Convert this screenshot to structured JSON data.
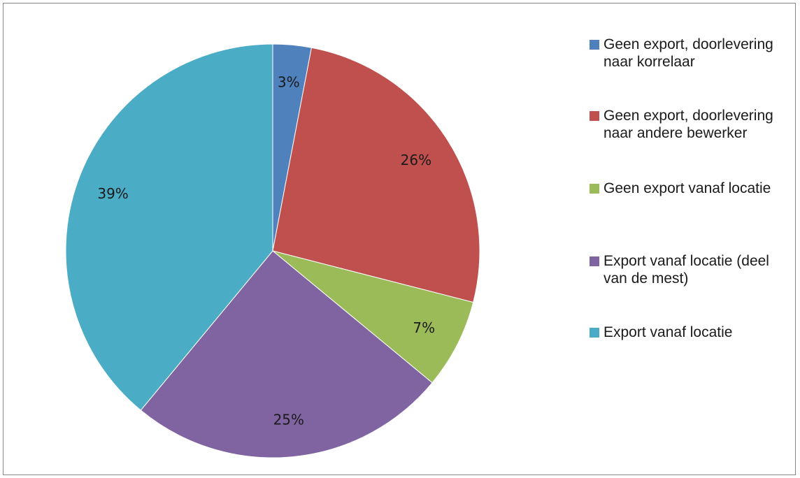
{
  "chart_data": {
    "type": "pie",
    "title": "",
    "legend_position": "right",
    "slices": [
      {
        "name": "Geen export, doorlevering naar korrelaar",
        "value": 3,
        "label": "3%",
        "color": "#4f81bd"
      },
      {
        "name": "Geen export, doorlevering naar andere bewerker",
        "value": 26,
        "label": "26%",
        "color": "#c0504d"
      },
      {
        "name": "Geen export vanaf locatie",
        "value": 7,
        "label": "7%",
        "color": "#9bbb59"
      },
      {
        "name": "Export vanaf locatie (deel van de mest)",
        "value": 25,
        "label": "25%",
        "color": "#8064a2"
      },
      {
        "name": "Export vanaf locatie",
        "value": 39,
        "label": "39%",
        "color": "#4bacc6"
      }
    ]
  }
}
